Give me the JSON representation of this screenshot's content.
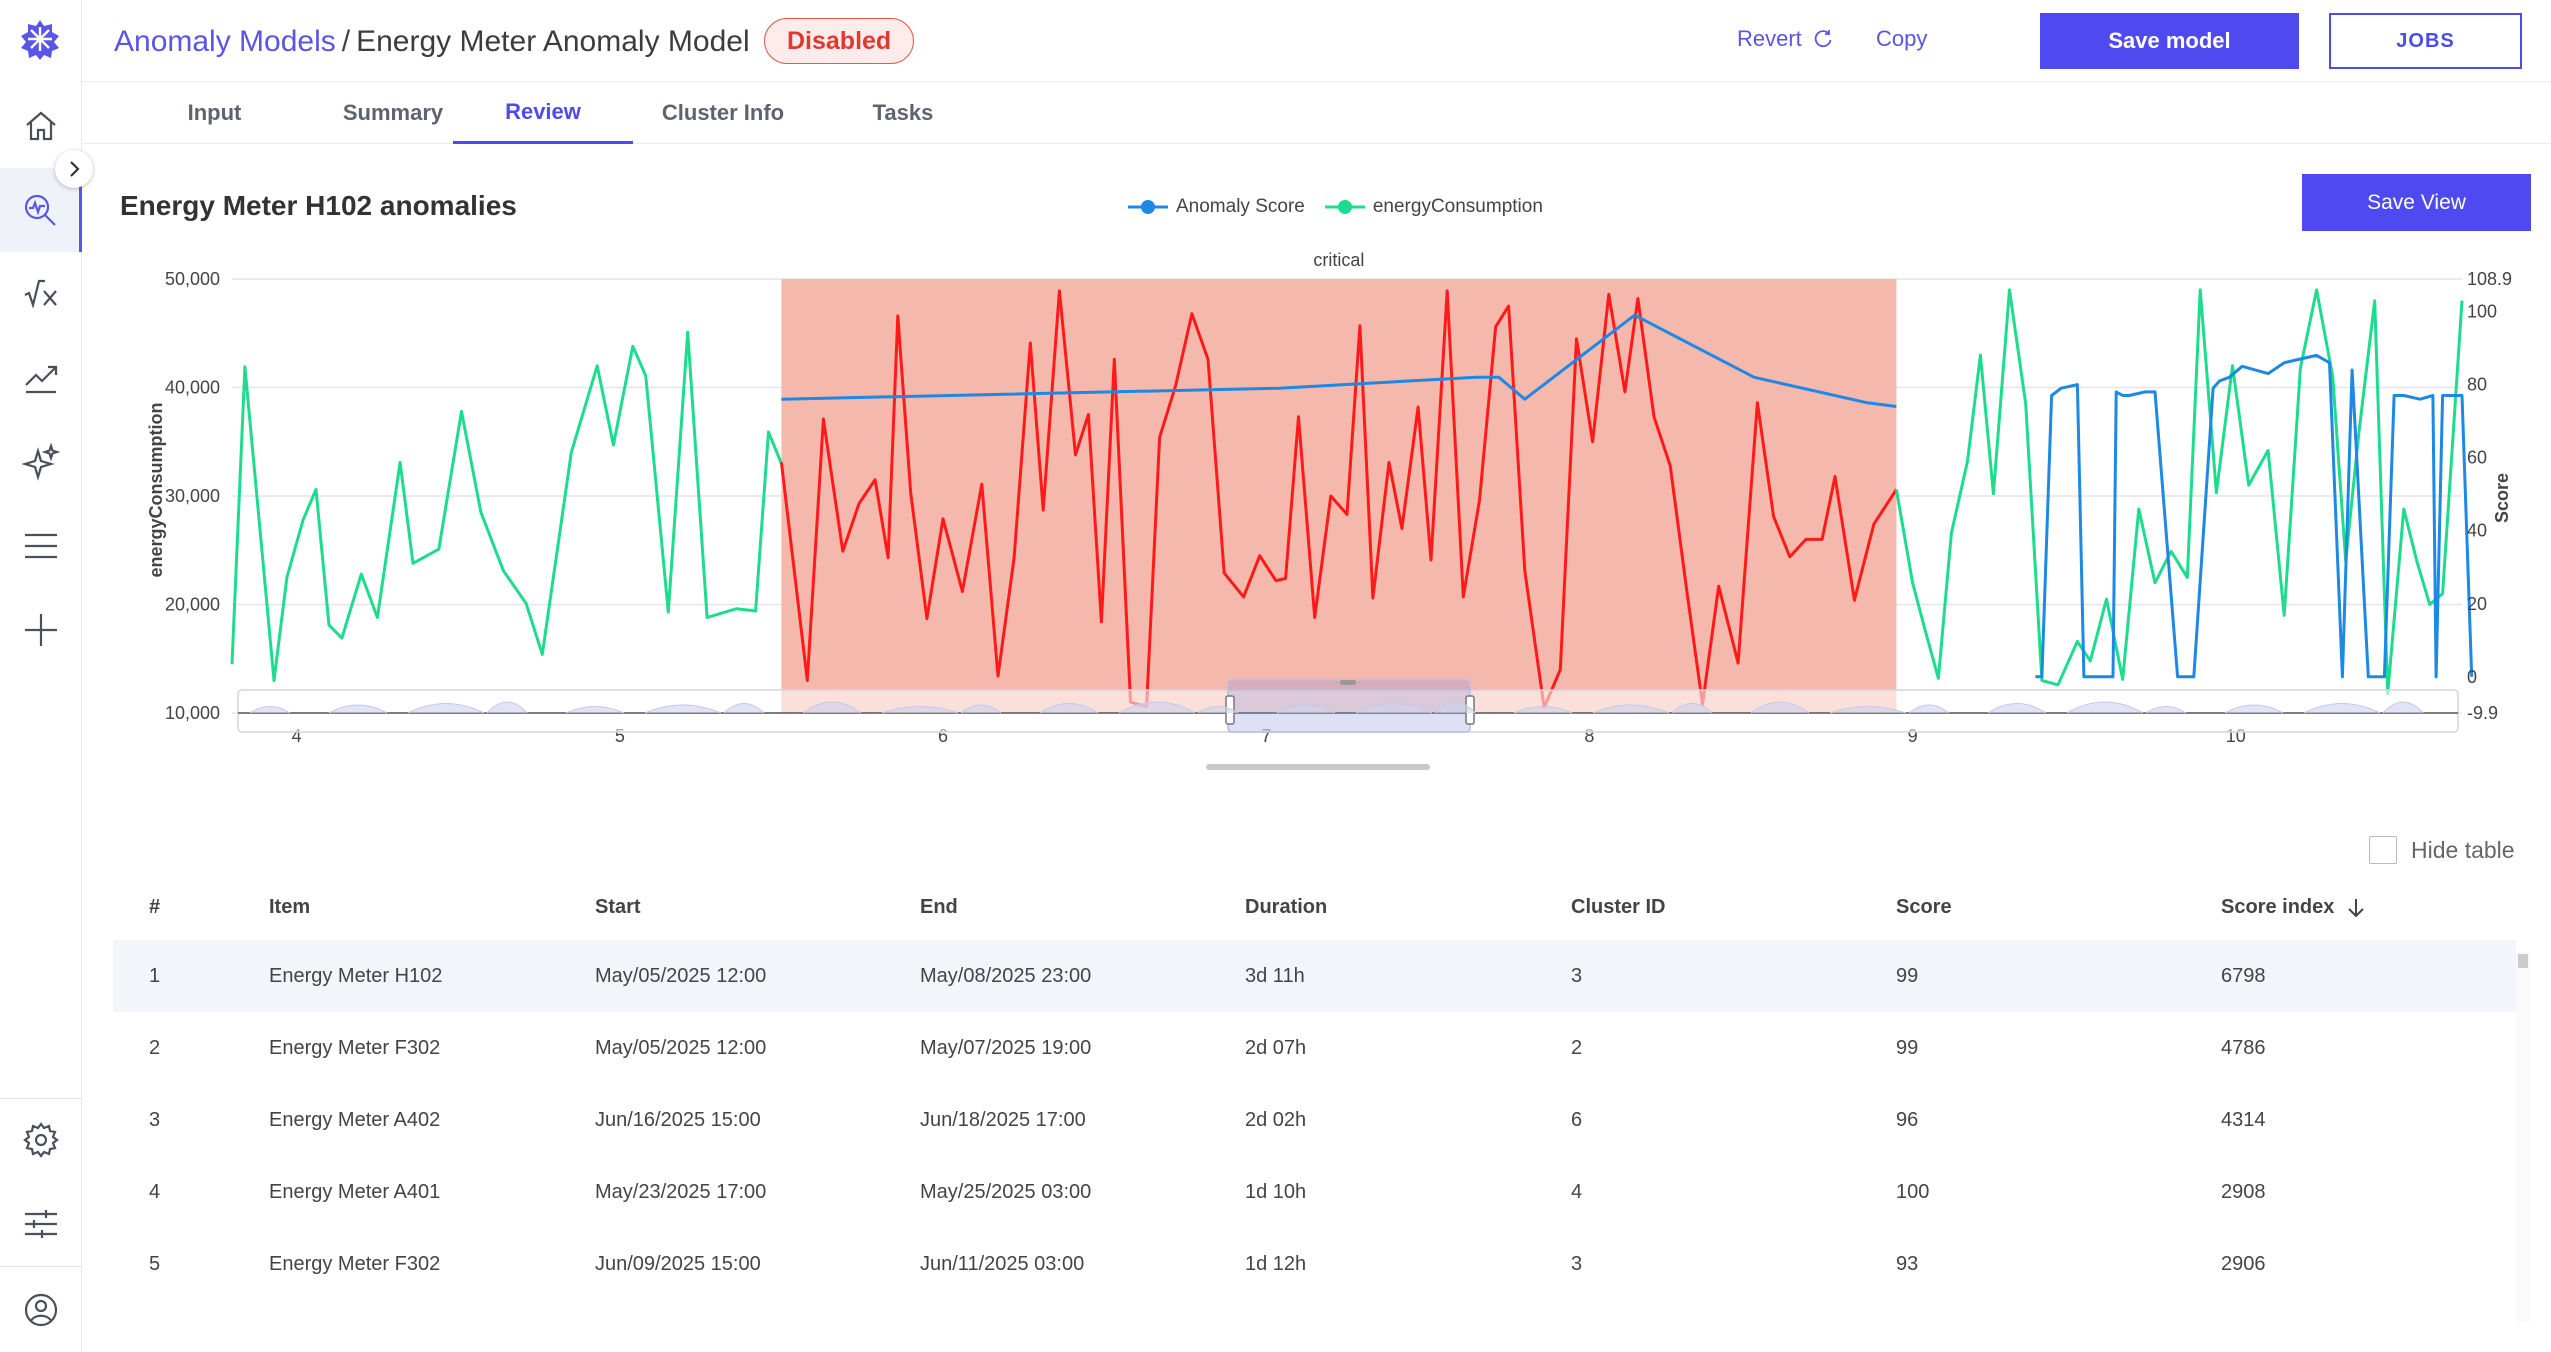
{
  "sidebar": {
    "items": [
      {
        "name": "home-icon"
      },
      {
        "name": "anomaly-search-icon"
      },
      {
        "name": "formula-icon"
      },
      {
        "name": "trend-icon"
      },
      {
        "name": "sparkle-icon"
      },
      {
        "name": "menu-icon"
      },
      {
        "name": "add-icon"
      },
      {
        "name": "settings-icon"
      },
      {
        "name": "sliders-icon"
      },
      {
        "name": "user-icon"
      }
    ]
  },
  "header": {
    "breadcrumb_link": "Anomaly Models",
    "breadcrumb_sep": "/",
    "title": "Energy Meter Anomaly Model",
    "status_badge": "Disabled",
    "revert_label": "Revert",
    "copy_label": "Copy",
    "save_label": "Save model",
    "jobs_label": "JOBS"
  },
  "tabs": [
    {
      "label": "Input"
    },
    {
      "label": "Summary"
    },
    {
      "label": "Review",
      "active": true
    },
    {
      "label": "Cluster Info"
    },
    {
      "label": "Tasks"
    }
  ],
  "chart": {
    "title": "Energy Meter H102 anomalies",
    "save_view_label": "Save View",
    "legend": [
      "Anomaly Score",
      "energyConsumption"
    ],
    "annotation": "critical"
  },
  "chart_data": {
    "type": "line",
    "title": "Energy Meter H102 anomalies",
    "xlabel": "",
    "ylabel": "energyConsumption",
    "y2label": "Score",
    "xlim": [
      3.8,
      10.7
    ],
    "ylim": [
      10000,
      50000
    ],
    "y2lim": [
      -9.9,
      108.9
    ],
    "x_ticks": [
      "4",
      "5",
      "6",
      "7",
      "8",
      "9",
      "10"
    ],
    "y_ticks": [
      "50,000",
      "40,000",
      "30,000",
      "20,000",
      "10,000"
    ],
    "y2_ticks": [
      "108.9",
      "100",
      "80",
      "60",
      "40",
      "20",
      "0",
      "-9.9"
    ],
    "grid": true,
    "legend_position": "top-center",
    "highlight_region": {
      "label": "critical",
      "x_start": 5.5,
      "x_end": 8.95,
      "color": "#f4b4a8"
    },
    "colors": {
      "anomaly_score": "#1e88e5",
      "energy": "#1ddc8c",
      "energy_anomaly": "#ff1a1a"
    },
    "series": [
      {
        "name": "energyConsumption",
        "x": [
          3.8,
          3.84,
          3.93,
          3.97,
          4.02,
          4.06,
          4.1,
          4.14,
          4.2,
          4.25,
          4.32,
          4.36,
          4.44,
          4.51,
          4.57,
          4.64,
          4.71,
          4.76,
          4.85,
          4.93,
          4.98,
          5.04,
          5.08,
          5.15,
          5.21,
          5.27,
          5.36,
          5.42,
          5.46,
          5.5
        ],
        "y": [
          14500,
          41900,
          13000,
          22500,
          27800,
          30600,
          18100,
          16900,
          22800,
          18800,
          33100,
          23800,
          25100,
          37800,
          28500,
          23100,
          20100,
          15400,
          34000,
          42000,
          34700,
          43800,
          41100,
          19300,
          45100,
          18800,
          19600,
          19400,
          35900,
          33000
        ]
      },
      {
        "name": "energyConsumption (critical)",
        "x": [
          5.5,
          5.58,
          5.63,
          5.69,
          5.74,
          5.79,
          5.83,
          5.86,
          5.9,
          5.95,
          6.0,
          6.06,
          6.12,
          6.17,
          6.22,
          6.27,
          6.31,
          6.36,
          6.41,
          6.45,
          6.49,
          6.53,
          6.58,
          6.63,
          6.67,
          6.72,
          6.77,
          6.82,
          6.87,
          6.93,
          6.98,
          7.03,
          7.06,
          7.1,
          7.15,
          7.2,
          7.25,
          7.29,
          7.33,
          7.38,
          7.42,
          7.47,
          7.51,
          7.56,
          7.61,
          7.66,
          7.71,
          7.75,
          7.8,
          7.86,
          7.91,
          7.96,
          8.01,
          8.06,
          8.11,
          8.15,
          8.2,
          8.25,
          8.3,
          8.35,
          8.4,
          8.46,
          8.52,
          8.57,
          8.62,
          8.67,
          8.72,
          8.76,
          8.82,
          8.88,
          8.95
        ],
        "y": [
          33100,
          13000,
          37100,
          24900,
          29300,
          31500,
          24300,
          46600,
          30300,
          18700,
          27900,
          21200,
          31100,
          13400,
          24300,
          44100,
          28700,
          48900,
          33800,
          37500,
          18400,
          42600,
          11000,
          10600,
          35400,
          40200,
          46800,
          42600,
          22900,
          20700,
          24500,
          22200,
          22400,
          37300,
          18800,
          30000,
          28300,
          45700,
          20600,
          33100,
          27000,
          38200,
          24100,
          48900,
          20700,
          29600,
          45600,
          47500,
          23100,
          10500,
          14000,
          44500,
          35000,
          48600,
          39600,
          48200,
          37300,
          32800,
          21600,
          10800,
          21700,
          14600,
          38600,
          28100,
          24400,
          26000,
          26000,
          31800,
          20400,
          27400,
          30600
        ]
      },
      {
        "name": "energyConsumption (after)",
        "x": [
          8.95,
          9.0,
          9.04,
          9.08,
          9.12,
          9.17,
          9.21,
          9.25,
          9.3,
          9.35,
          9.4,
          9.45,
          9.51,
          9.55,
          9.6,
          9.65,
          9.7,
          9.75,
          9.8,
          9.85,
          9.89,
          9.94,
          9.99,
          10.04,
          10.1,
          10.15,
          10.2,
          10.25,
          10.3,
          10.34,
          10.38,
          10.43,
          10.47,
          10.52,
          10.56,
          10.6,
          10.64,
          10.7
        ],
        "y": [
          30600,
          22000,
          17500,
          13200,
          26600,
          33200,
          43000,
          30200,
          49000,
          38500,
          13000,
          12600,
          16600,
          14800,
          20500,
          13100,
          28800,
          22000,
          24900,
          22500,
          49000,
          30300,
          42000,
          31000,
          34200,
          19000,
          41800,
          49000,
          41000,
          24000,
          35600,
          48000,
          11800,
          28800,
          24000,
          20000,
          21000,
          48000
        ]
      },
      {
        "name": "Anomaly Score",
        "x": [
          5.5,
          7.04,
          7.65,
          7.72,
          7.8,
          8.14,
          8.51,
          8.86,
          8.95
        ],
        "y": [
          76,
          79,
          82,
          82,
          76,
          99,
          82,
          75,
          74
        ]
      },
      {
        "name": "Anomaly Score (after)",
        "x": [
          9.38,
          9.4,
          9.43,
          9.46,
          9.51,
          9.53,
          9.56,
          9.62,
          9.63,
          9.65,
          9.67,
          9.72,
          9.75,
          9.82,
          9.87,
          9.93,
          9.95,
          9.98,
          10.02,
          10.1,
          10.15,
          10.2,
          10.25,
          10.29,
          10.33,
          10.36,
          10.41,
          10.46,
          10.49,
          10.52,
          10.57,
          10.61,
          10.62,
          10.64,
          10.66,
          10.7,
          10.73
        ],
        "y": [
          0,
          0,
          77,
          79,
          80,
          0,
          0,
          0,
          78,
          77,
          77,
          78,
          78,
          0,
          0,
          79,
          81,
          82,
          85,
          83,
          86,
          87,
          88,
          86,
          0,
          84,
          0,
          0,
          77,
          77,
          76,
          77,
          0,
          77,
          77,
          77,
          0
        ]
      }
    ],
    "mini_timeline_ticks": [
      "4",
      "5",
      "6",
      "7",
      "8",
      "9",
      "10"
    ]
  },
  "table": {
    "hide_label": "Hide table",
    "columns": [
      "#",
      "Item",
      "Start",
      "End",
      "Duration",
      "Cluster ID",
      "Score",
      "Score index"
    ],
    "rows": [
      [
        "1",
        "Energy Meter H102",
        "May/05/2025 12:00",
        "May/08/2025 23:00",
        "3d 11h",
        "3",
        "99",
        "6798"
      ],
      [
        "2",
        "Energy Meter F302",
        "May/05/2025 12:00",
        "May/07/2025 19:00",
        "2d 07h",
        "2",
        "99",
        "4786"
      ],
      [
        "3",
        "Energy Meter A402",
        "Jun/16/2025 15:00",
        "Jun/18/2025 17:00",
        "2d 02h",
        "6",
        "96",
        "4314"
      ],
      [
        "4",
        "Energy Meter A401",
        "May/23/2025 17:00",
        "May/25/2025 03:00",
        "1d 10h",
        "4",
        "100",
        "2908"
      ],
      [
        "5",
        "Energy Meter F302",
        "Jun/09/2025 15:00",
        "Jun/11/2025 03:00",
        "1d 12h",
        "3",
        "93",
        "2906"
      ]
    ]
  }
}
